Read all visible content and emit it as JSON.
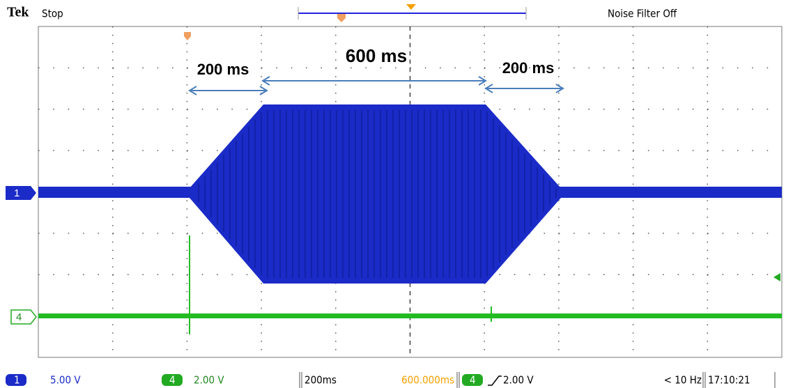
{
  "header": {
    "brand": "Tek",
    "status": "Stop",
    "filter": "Noise Filter Off"
  },
  "annotations": [
    "200 ms",
    "600 ms",
    "200 ms"
  ],
  "channel_markers": [
    "1",
    "4"
  ],
  "status_bar": {
    "ch1": {
      "number": "1",
      "scale": "5.00 V"
    },
    "ch4": {
      "number": "4",
      "scale": "2.00 V"
    },
    "timebase": "200ms",
    "position": "600.000ms",
    "trigger": {
      "source": "4",
      "level": "2.00 V"
    },
    "frequency": "< 10 Hz",
    "time": "17:10:21"
  }
}
